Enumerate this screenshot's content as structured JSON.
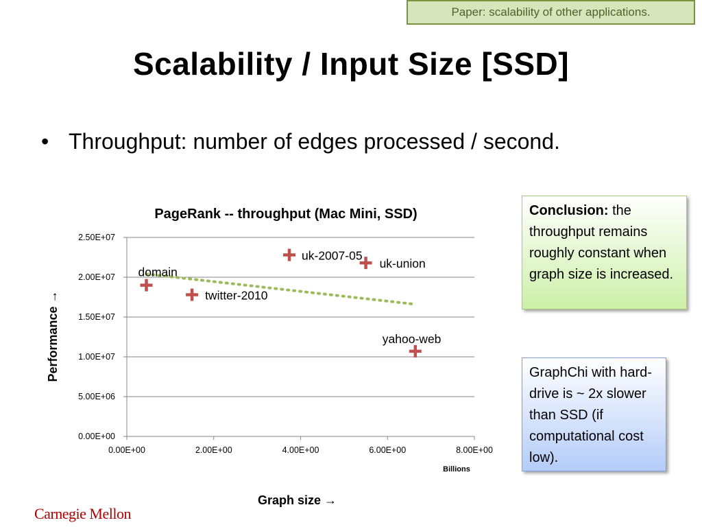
{
  "header": {
    "tag": "Paper: scalability of other applications."
  },
  "slide": {
    "title": "Scalability  / Input Size [SSD]",
    "bullet": "Throughput: number of edges processed / second."
  },
  "notes": {
    "conclusion_label": "Conclusion:",
    "conclusion_text": " the throughput remains roughly constant when graph size is increased.",
    "graphchi_text": "GraphChi with hard-drive is ~ 2x slower than SSD (if computational cost low)."
  },
  "logo": "Carnegie Mellon",
  "chart_data": {
    "type": "scatter",
    "title": "PageRank -- throughput (Mac Mini, SSD)",
    "xlabel": "Graph size",
    "ylabel": "Performance",
    "xunit": "Billions",
    "xlim": [
      0,
      8
    ],
    "ylim": [
      0,
      25000000
    ],
    "xticks": [
      "0.00E+00",
      "2.00E+00",
      "4.00E+00",
      "6.00E+00",
      "8.00E+00"
    ],
    "yticks": [
      "0.00E+00",
      "5.00E+06",
      "1.00E+07",
      "1.50E+07",
      "2.00E+07",
      "2.50E+07"
    ],
    "grid": true,
    "points": [
      {
        "label": "domain",
        "x": 0.45,
        "y": 19000000
      },
      {
        "label": "twitter-2010",
        "x": 1.5,
        "y": 17800000
      },
      {
        "label": "uk-2007-05",
        "x": 3.74,
        "y": 22800000
      },
      {
        "label": "uk-union",
        "x": 5.5,
        "y": 21800000
      },
      {
        "label": "yahoo-web",
        "x": 6.64,
        "y": 10700000
      }
    ],
    "trendline": {
      "x": [
        0.45,
        6.64
      ],
      "y": [
        20400000,
        16600000
      ],
      "style": "dotted"
    },
    "colors": {
      "marker": "#c0504d",
      "trend": "#9bbb59",
      "grid": "#868686"
    }
  }
}
